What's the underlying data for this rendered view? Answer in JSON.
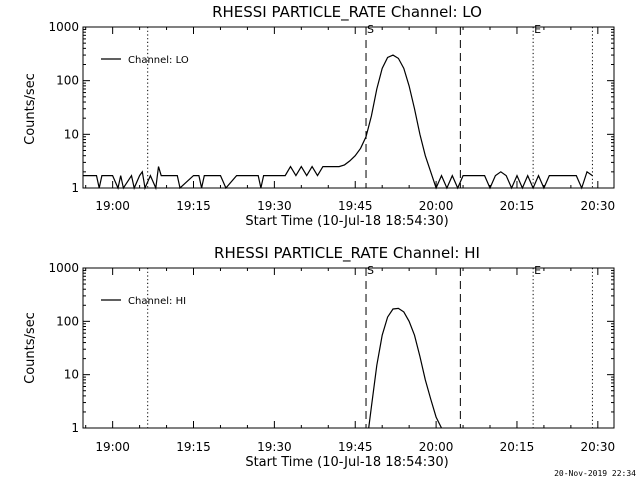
{
  "chart_data": [
    {
      "type": "line",
      "title": "RHESSI PARTICLE_RATE Channel: LO",
      "xlabel": "Start Time (10-Jul-18 18:54:30)",
      "ylabel": "Counts/sec",
      "y_scale": "log",
      "ylim": [
        1,
        1000
      ],
      "xlim": [
        "18:54:30",
        "20:33:00"
      ],
      "x_ticks": [
        "19:00",
        "19:15",
        "19:30",
        "19:45",
        "20:00",
        "20:15",
        "20:30"
      ],
      "y_ticks": [
        "1",
        "10",
        "100",
        "1000"
      ],
      "legend": {
        "label": "Channel: LO",
        "position": "top-left"
      },
      "markers": [
        {
          "time": "19:06:30",
          "label": "",
          "style": "dotted"
        },
        {
          "time": "19:47:00",
          "label": "S",
          "style": "dashed"
        },
        {
          "time": "20:04:30",
          "label": "",
          "style": "dashed"
        },
        {
          "time": "20:18:00",
          "label": "E",
          "style": "dotted"
        },
        {
          "time": "20:29:00",
          "label": "",
          "style": "dotted"
        }
      ],
      "series": [
        {
          "name": "Channel: LO",
          "x": [
            "18:54:30",
            "18:57:00",
            "18:57:30",
            "18:58:00",
            "19:00:00",
            "19:01:00",
            "19:01:30",
            "19:02:00",
            "19:03:30",
            "19:04:00",
            "19:05:00",
            "19:05:30",
            "19:06:00",
            "19:07:00",
            "19:08:00",
            "19:08:30",
            "19:09:00",
            "19:10:00",
            "19:12:00",
            "19:12:30",
            "19:15:00",
            "19:16:00",
            "19:16:30",
            "19:17:00",
            "19:20:00",
            "19:21:00",
            "19:23:00",
            "19:27:00",
            "19:27:30",
            "19:28:00",
            "19:30:00",
            "19:32:00",
            "19:33:00",
            "19:34:00",
            "19:35:00",
            "19:36:00",
            "19:37:00",
            "19:38:00",
            "19:39:00",
            "19:40:00",
            "19:41:00",
            "19:42:00",
            "19:43:00",
            "19:44:00",
            "19:45:00",
            "19:46:00",
            "19:47:00",
            "19:48:00",
            "19:49:00",
            "19:50:00",
            "19:51:00",
            "19:52:00",
            "19:53:00",
            "19:54:00",
            "19:55:00",
            "19:56:00",
            "19:57:00",
            "19:58:00",
            "19:59:00",
            "20:00:00",
            "20:01:00",
            "20:02:00",
            "20:03:00",
            "20:04:00",
            "20:05:00",
            "20:06:00",
            "20:07:00",
            "20:08:00",
            "20:09:00",
            "20:10:00",
            "20:11:00",
            "20:12:00",
            "20:13:00",
            "20:14:00",
            "20:15:00",
            "20:16:00",
            "20:17:00",
            "20:18:00",
            "20:19:00",
            "20:20:00",
            "20:21:00",
            "20:22:00",
            "20:24:00",
            "20:25:00",
            "20:26:00",
            "20:27:00",
            "20:28:00",
            "20:29:00"
          ],
          "values": [
            1.7,
            1.7,
            1,
            1.7,
            1.7,
            1,
            1.7,
            1,
            1.7,
            1,
            1.7,
            2,
            1,
            1.7,
            1,
            2.5,
            1.7,
            1.7,
            1.7,
            1,
            1.7,
            1.7,
            1,
            1.7,
            1.7,
            1,
            1.7,
            1.7,
            1,
            1.7,
            1.7,
            1.7,
            2.5,
            1.7,
            2.5,
            1.7,
            2.5,
            1.7,
            2.5,
            2.5,
            2.5,
            2.5,
            2.7,
            3.2,
            4,
            5.5,
            9,
            22,
            70,
            170,
            270,
            300,
            260,
            170,
            80,
            30,
            10,
            4,
            2,
            1,
            1.7,
            1,
            1.7,
            1,
            1.7,
            1.7,
            1.7,
            1.7,
            1.7,
            1,
            1.7,
            2,
            1.7,
            1,
            1.7,
            1,
            1.7,
            1,
            1.7,
            1,
            1.7,
            1.7,
            1.7,
            1.7,
            1.7,
            1,
            2,
            1.7
          ]
        }
      ]
    },
    {
      "type": "line",
      "title": "RHESSI PARTICLE_RATE Channel: HI",
      "xlabel": "Start Time (10-Jul-18 18:54:30)",
      "ylabel": "Counts/sec",
      "y_scale": "log",
      "ylim": [
        1,
        1000
      ],
      "xlim": [
        "18:54:30",
        "20:33:00"
      ],
      "x_ticks": [
        "19:00",
        "19:15",
        "19:30",
        "19:45",
        "20:00",
        "20:15",
        "20:30"
      ],
      "y_ticks": [
        "1",
        "10",
        "100",
        "1000"
      ],
      "legend": {
        "label": "Channel: HI",
        "position": "top-left"
      },
      "markers": [
        {
          "time": "19:06:30",
          "label": "",
          "style": "dotted"
        },
        {
          "time": "19:47:00",
          "label": "S",
          "style": "dashed"
        },
        {
          "time": "20:04:30",
          "label": "",
          "style": "dashed"
        },
        {
          "time": "20:18:00",
          "label": "E",
          "style": "dotted"
        },
        {
          "time": "20:29:00",
          "label": "",
          "style": "dotted"
        }
      ],
      "series": [
        {
          "name": "Channel: HI",
          "x": [
            "19:47:30",
            "19:48:00",
            "19:49:00",
            "19:50:00",
            "19:51:00",
            "19:52:00",
            "19:53:00",
            "19:54:00",
            "19:55:00",
            "19:56:00",
            "19:57:00",
            "19:58:00",
            "19:59:00",
            "20:00:00",
            "20:01:00"
          ],
          "values": [
            1,
            2.5,
            15,
            55,
            120,
            170,
            175,
            150,
            100,
            55,
            22,
            8,
            3.5,
            1.6,
            1
          ]
        }
      ]
    }
  ],
  "timestamp": "20-Nov-2019 22:34"
}
